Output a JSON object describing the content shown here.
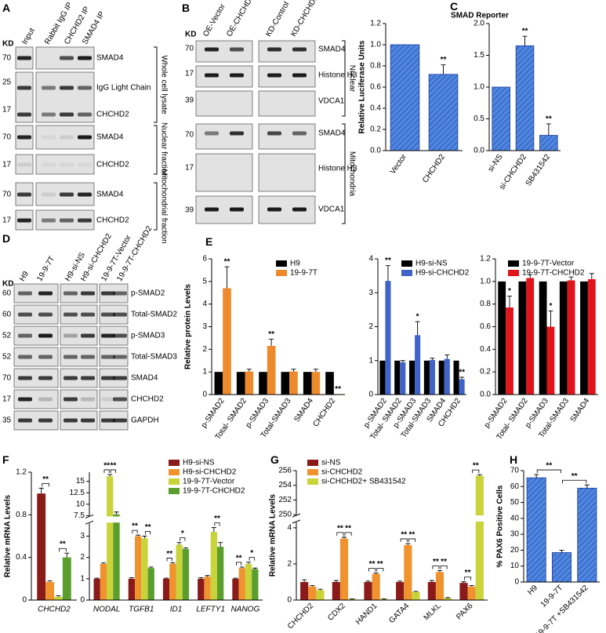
{
  "panel_labels": [
    "A",
    "B",
    "C",
    "D",
    "E",
    "F",
    "G",
    "H"
  ],
  "blots": {
    "A": {
      "kd_header": "KD",
      "lanes": [
        "Input",
        "Rabbit IgG IP",
        "CHCHD2 IP",
        "SMAD4 IP"
      ],
      "rows": [
        {
          "kd": [
            70
          ],
          "labels": [
            "SMAD4"
          ]
        },
        {
          "kd": [
            25,
            17
          ],
          "labels": [
            "IgG Light Chain",
            "CHCHD2"
          ]
        },
        {
          "kd": [
            70
          ],
          "labels": [
            "SMAD4"
          ]
        },
        {
          "kd": [
            17
          ],
          "labels": [
            "CHCHD2"
          ]
        },
        {
          "kd": [
            70
          ],
          "labels": [
            "SMAD4"
          ]
        },
        {
          "kd": [
            17
          ],
          "labels": [
            "CHCHD2"
          ]
        }
      ],
      "sections": [
        "Whole cell lysate",
        "Nuclear fraction",
        "Mitochondrial fraction"
      ]
    },
    "B": {
      "kd_header": "KD",
      "lanes": [
        "OE-Vector",
        "OE-CHCHD2",
        "KD-Control",
        "KD-CHCHD2"
      ],
      "rows": [
        {
          "kd": [
            70
          ],
          "labels": [
            "SMAD4"
          ]
        },
        {
          "kd": [
            17
          ],
          "labels": [
            "Histone H3"
          ]
        },
        {
          "kd": [
            39
          ],
          "labels": [
            "VDCA1"
          ]
        },
        {
          "kd": [
            70
          ],
          "labels": [
            "SMAD4"
          ]
        },
        {
          "kd": [
            17
          ],
          "labels": [
            "Histone H3"
          ]
        },
        {
          "kd": [
            39
          ],
          "labels": [
            "VDCA1"
          ]
        }
      ],
      "sections": [
        "Nuclear",
        "Mitochondria"
      ]
    },
    "D": {
      "kd_header": "KD",
      "lanes": [
        "H9",
        "19-9-7T",
        "H9-si-NS",
        "H9-si-CHCHD2",
        "19-9-7T-Vector",
        "19-9-7T-CHCHD2"
      ],
      "rows": [
        {
          "kd": [
            60
          ],
          "labels": [
            "p-SMAD2"
          ]
        },
        {
          "kd": [
            60
          ],
          "labels": [
            "Total-SMAD2"
          ]
        },
        {
          "kd": [
            52
          ],
          "labels": [
            "p-SMAD3"
          ]
        },
        {
          "kd": [
            52
          ],
          "labels": [
            "Total-SMAD3"
          ]
        },
        {
          "kd": [
            70
          ],
          "labels": [
            "SMAD4"
          ]
        },
        {
          "kd": [
            17
          ],
          "labels": [
            "CHCHD2"
          ]
        },
        {
          "kd": [
            35
          ],
          "labels": [
            "GAPDH"
          ]
        }
      ]
    }
  },
  "chart_data": [
    {
      "type": "bar",
      "title": "SMAD Reporter",
      "ylabel": "Relative Luciferase Units",
      "categories": [
        "Vector",
        "CHCHD2"
      ],
      "hatch": true,
      "series": [
        {
          "color": "#4f86e0",
          "values": [
            1.0,
            0.72
          ],
          "errors": [
            null,
            0.09
          ],
          "significance": [
            null,
            "**"
          ]
        }
      ],
      "ylim": [
        0,
        1.2
      ],
      "yticks": [
        {
          "value": 0,
          "label": "0.0"
        },
        0.2,
        0.4,
        0.6,
        0.8,
        {
          "value": 1,
          "label": "1.0"
        },
        1.2
      ]
    },
    {
      "type": "bar",
      "categories": [
        "si-NS",
        "si-CHCHD2",
        "SB431542"
      ],
      "hatch": true,
      "series": [
        {
          "color": "#4f86e0",
          "values": [
            1.0,
            1.65,
            0.24
          ],
          "errors": [
            null,
            0.15,
            0.18
          ],
          "significance": [
            null,
            "**",
            "**"
          ]
        }
      ],
      "ylim": [
        0,
        2
      ],
      "yticks": [
        {
          "value": 0,
          "label": "0.0"
        },
        0.5,
        {
          "value": 1,
          "label": "1.0"
        },
        1.5,
        {
          "value": 2,
          "label": "2.0"
        }
      ]
    },
    {
      "type": "bar",
      "ylabel": "Relative protein Levels",
      "categories": [
        "p-SMAD2",
        "Total- SMAD2",
        "p-SMAD3",
        "Total-SMAD3",
        "SMAD4",
        "CHCHD2"
      ],
      "series": [
        {
          "name": "H9",
          "color": "#000000",
          "values": [
            1,
            1,
            1,
            1,
            1,
            1
          ]
        },
        {
          "name": "19-9-7T",
          "color": "#ee8a2b",
          "values": [
            4.7,
            1.02,
            2.15,
            1.02,
            1.0,
            0.02
          ],
          "errors": [
            0.95,
            0.1,
            0.3,
            0.1,
            0.12,
            null
          ],
          "significance": [
            "**",
            null,
            "**",
            null,
            null,
            "**"
          ]
        }
      ],
      "ylim": [
        0,
        6
      ],
      "yticks": [
        0,
        1,
        2,
        3,
        4,
        5,
        6
      ]
    },
    {
      "type": "bar",
      "categories": [
        "p-SMAD2",
        "Total- SMAD2",
        "p-SMAD3",
        "Total-SMAD3",
        "SMAD4",
        "CHCHD2"
      ],
      "series": [
        {
          "name": "H9-si-NS",
          "color": "#000000",
          "values": [
            1,
            1,
            1,
            1,
            1,
            1
          ]
        },
        {
          "name": "H9-si-CHCHD2",
          "color": "#3f63c9",
          "values": [
            3.35,
            0.95,
            1.75,
            1.02,
            1.05,
            0.45
          ],
          "errors": [
            0.45,
            0.05,
            0.4,
            0.05,
            0.12,
            0.06
          ],
          "significance": [
            "**",
            null,
            "*",
            null,
            null,
            "**"
          ]
        }
      ],
      "ylim": [
        0,
        4
      ],
      "yticks": [
        0,
        1,
        2,
        3,
        4
      ]
    },
    {
      "type": "bar",
      "categories": [
        "p-SMAD2",
        "Total- SMAD2",
        "p-SMAD3",
        "Total-SMAD3",
        "SMAD4"
      ],
      "series": [
        {
          "name": "19-9-7T-Vector",
          "color": "#000000",
          "values": [
            1,
            1,
            1,
            1,
            1
          ]
        },
        {
          "name": "19-9-7T-CHCHD2",
          "color": "#e0141b",
          "values": [
            0.77,
            1.03,
            0.6,
            1.01,
            1.02
          ],
          "errors": [
            0.1,
            0.03,
            0.14,
            0.03,
            0.05
          ],
          "significance": [
            "*",
            null,
            "*",
            null,
            null
          ]
        }
      ],
      "ylim": [
        0,
        1.2
      ],
      "yticks": [
        {
          "value": 0,
          "label": "0.0"
        },
        0.2,
        0.4,
        0.6,
        0.8,
        {
          "value": 1,
          "label": "1.0"
        },
        1.2
      ]
    },
    {
      "type": "bar",
      "ylabel": "Relative mRNA Levels",
      "categories": [
        "CHCHD2"
      ],
      "series": [
        {
          "color": "#8b1a1a",
          "values": [
            1.0
          ],
          "errors": [
            0.05
          ]
        },
        {
          "color": "#f0932f",
          "values": [
            0.17
          ],
          "errors": [
            0.01
          ]
        },
        {
          "color": "#c8d43a",
          "values": [
            0.03
          ],
          "errors": [
            0.01
          ]
        },
        {
          "color": "#5a9e2e",
          "values": [
            0.4
          ],
          "errors": [
            0.04
          ]
        }
      ],
      "brackets": [
        {
          "category": 0,
          "from": 0,
          "to": 1,
          "label": "**"
        },
        {
          "category": 0,
          "from": 2,
          "to": 3,
          "label": "**"
        }
      ],
      "ylim": [
        0,
        1.2
      ],
      "yticks": [
        0,
        0.4,
        0.8,
        1.2
      ]
    },
    {
      "type": "bar",
      "categories": [
        "NODAL",
        "TGFB1",
        "ID1",
        "LEFTY1",
        "NANOG"
      ],
      "series": [
        {
          "name": "H9-si-NS",
          "color": "#8b1a1a",
          "values": [
            1,
            1,
            1,
            1,
            1
          ],
          "errors": [
            0.03,
            0.05,
            0.03,
            0.05,
            0.03
          ]
        },
        {
          "name": "H9-si-CHCHD2",
          "color": "#f0932f",
          "values": [
            1.7,
            3.0,
            1.7,
            1.1,
            1.5
          ],
          "errors": [
            0.04,
            0.05,
            0.05,
            0.05,
            0.05
          ]
        },
        {
          "name": "19-9-7T-Vector",
          "color": "#c8d43a",
          "values": [
            16.1,
            2.9,
            2.6,
            3.2,
            1.7
          ],
          "errors": [
            0.4,
            0.1,
            0.1,
            0.2,
            0.08
          ]
        },
        {
          "name": "19-9-7T-CHCHD2",
          "color": "#5a9e2e",
          "values": [
            7.8,
            1.5,
            2.4,
            2.5,
            1.45
          ],
          "errors": [
            0.5,
            0.05,
            0.05,
            0.2,
            0.05
          ]
        }
      ],
      "brackets": [
        {
          "category": 0,
          "from": 1,
          "to": 2,
          "label": "**"
        },
        {
          "category": 0,
          "from": 2,
          "to": 3,
          "label": "**"
        },
        {
          "category": 1,
          "from": 0,
          "to": 1,
          "label": "**"
        },
        {
          "category": 1,
          "from": 2,
          "to": 3,
          "label": "**"
        },
        {
          "category": 2,
          "from": 0,
          "to": 1,
          "label": "**"
        },
        {
          "category": 2,
          "from": 2,
          "to": 3,
          "label": "*"
        },
        {
          "category": 3,
          "from": 2,
          "to": 3,
          "label": "**"
        },
        {
          "category": 4,
          "from": 0,
          "to": 1,
          "label": "**"
        },
        {
          "category": 4,
          "from": 2,
          "to": 3,
          "label": "*"
        }
      ],
      "ylim": [
        0,
        17
      ],
      "ybreak": [
        3.6,
        7.5
      ],
      "yticks": [
        0,
        1,
        2,
        3,
        7.5,
        10,
        12.5,
        15
      ]
    },
    {
      "type": "bar",
      "ylabel": "Relative mRNA Levels",
      "categories": [
        "CHCHD2",
        "CDX2",
        "HAND1",
        "GATA4",
        "MLKL",
        "PAX6"
      ],
      "series": [
        {
          "name": "si-NS",
          "color": "#8b1a1a",
          "values": [
            1,
            1,
            1,
            1,
            1,
            0.95
          ],
          "errors": [
            0.12,
            0.08,
            0.05,
            0.05,
            0.08,
            0.06
          ]
        },
        {
          "name": "si-CHCHD2",
          "color": "#f0932f",
          "values": [
            0.75,
            3.4,
            1.45,
            3.05,
            1.55,
            0.75
          ],
          "errors": [
            0.05,
            0.08,
            0.05,
            0.08,
            0.08,
            0.05
          ]
        },
        {
          "name": "si-CHCHD2+ SB431542",
          "color": "#c8d43a",
          "values": [
            0.55,
            0.05,
            0.05,
            0.45,
            0.1,
            255.3
          ],
          "errors": [
            0.05,
            0.02,
            0.02,
            0.03,
            0.03,
            0.15
          ]
        }
      ],
      "brackets": [
        {
          "category": 1,
          "from": 0,
          "to": 1,
          "label": "**"
        },
        {
          "category": 1,
          "from": 1,
          "to": 2,
          "label": "**"
        },
        {
          "category": 2,
          "from": 0,
          "to": 1,
          "label": "**"
        },
        {
          "category": 2,
          "from": 1,
          "to": 2,
          "label": "**"
        },
        {
          "category": 3,
          "from": 0,
          "to": 1,
          "label": "**"
        },
        {
          "category": 3,
          "from": 1,
          "to": 2,
          "label": "**"
        },
        {
          "category": 4,
          "from": 0,
          "to": 1,
          "label": "**"
        },
        {
          "category": 4,
          "from": 1,
          "to": 2,
          "label": "**"
        },
        {
          "category": 5,
          "from": 0,
          "to": 1,
          "label": "**"
        },
        {
          "category": 5,
          "from": 1,
          "to": 2,
          "label": "**"
        }
      ],
      "ylim": [
        0,
        256
      ],
      "ybreak": [
        4.3,
        250
      ],
      "yticks": [
        0,
        2,
        4,
        250,
        252,
        254,
        256
      ]
    },
    {
      "type": "bar",
      "ylabel": "% PAX6 Positive Cells",
      "categories": [
        "H9",
        "19-9-7T",
        "19-9-7T +SB431542"
      ],
      "hatch": true,
      "series": [
        {
          "color": "#4f86e0",
          "values": [
            65.5,
            18.5,
            59
          ],
          "errors": [
            2,
            1.5,
            2
          ]
        }
      ],
      "brackets": [
        {
          "from": 0,
          "to": 1,
          "label": "**"
        },
        {
          "from": 1,
          "to": 2,
          "label": "**"
        }
      ],
      "ylim": [
        0,
        70
      ],
      "yticks": [
        0,
        10,
        20,
        30,
        40,
        50,
        60,
        70
      ]
    }
  ]
}
